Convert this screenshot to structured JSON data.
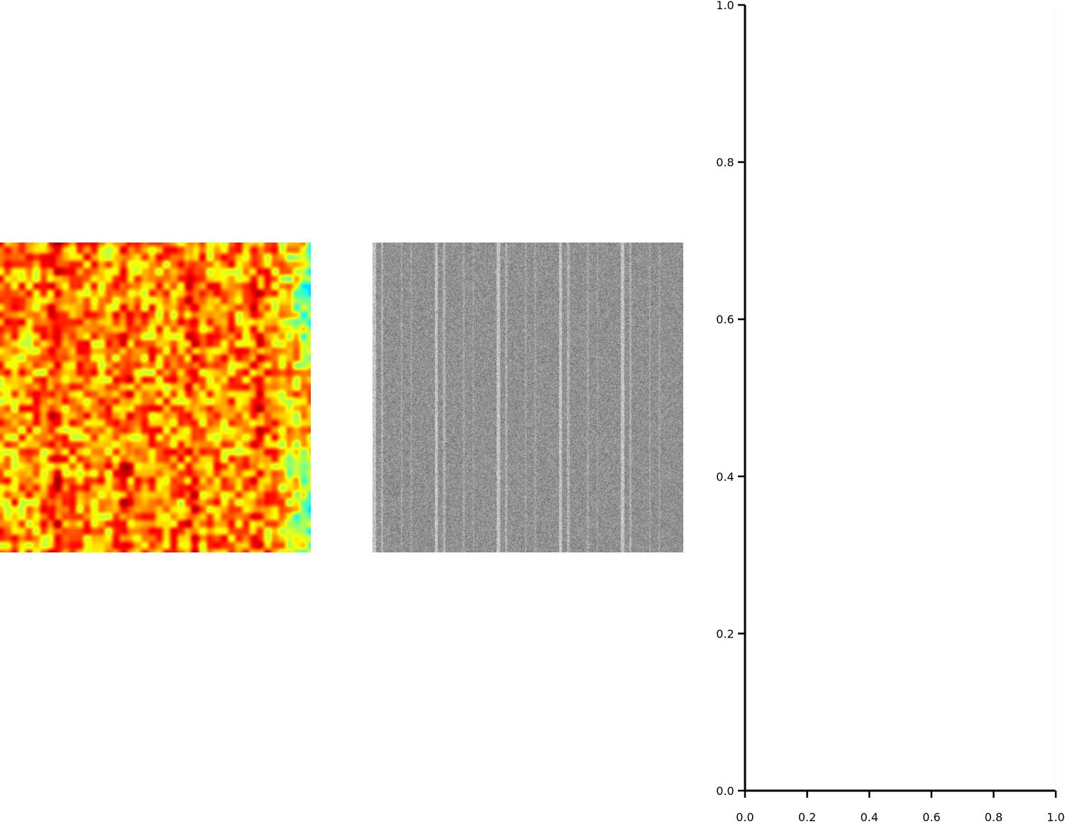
{
  "chart_data": [
    {
      "type": "heatmap",
      "panel": "left",
      "colormap": "jet",
      "value_range_shown": "cyan-blue to red (mostly yellow-orange-red)",
      "axes_visible": false,
      "title": ""
    },
    {
      "type": "heatmap",
      "panel": "middle",
      "colormap": "gray",
      "pattern": "noisy gray texture with vertical bright stripes",
      "axes_visible": false,
      "title": ""
    },
    {
      "type": "line",
      "panel": "right",
      "series": [],
      "xlim": [
        0.0,
        1.0
      ],
      "ylim": [
        0.0,
        1.0
      ],
      "xticks": [
        "0.0",
        "0.2",
        "0.4",
        "0.6",
        "0.8",
        "1.0"
      ],
      "yticks": [
        "0.0",
        "0.2",
        "0.4",
        "0.6",
        "0.8",
        "1.0"
      ],
      "xlabel": "",
      "ylabel": "",
      "title": "",
      "grid": false,
      "spines": "left and bottom only"
    }
  ]
}
